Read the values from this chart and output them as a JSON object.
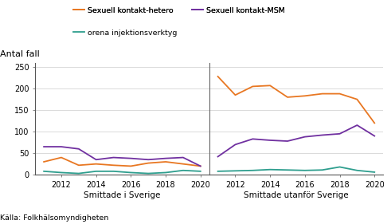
{
  "years": [
    2011,
    2012,
    2013,
    2014,
    2015,
    2016,
    2017,
    2018,
    2019,
    2020
  ],
  "sweden_hetero": [
    30,
    40,
    22,
    25,
    22,
    20,
    27,
    30,
    25,
    20
  ],
  "sweden_msm": [
    65,
    65,
    60,
    35,
    40,
    38,
    35,
    38,
    40,
    20
  ],
  "sweden_inject": [
    8,
    5,
    3,
    8,
    8,
    5,
    3,
    5,
    10,
    8
  ],
  "abroad_hetero": [
    228,
    185,
    205,
    207,
    180,
    183,
    188,
    188,
    175,
    120
  ],
  "abroad_msm": [
    42,
    70,
    83,
    80,
    78,
    88,
    92,
    95,
    115,
    90
  ],
  "abroad_inject": [
    8,
    9,
    10,
    12,
    11,
    10,
    11,
    18,
    10,
    6
  ],
  "color_hetero": "#E87722",
  "color_msm": "#7030A0",
  "color_inject": "#2E9E8E",
  "label_hetero": "Sexuell kontakt-hetero",
  "label_msm": "Sexuell kontakt-MSM",
  "label_inject": "orena injektionsverktyg",
  "title": "Antal fall",
  "xlabel_left": "Smittade i Sverige",
  "xlabel_right": "Smittade utanför Sverige",
  "source": "Källa: Folkhälsomyndigheten",
  "ylim": [
    0,
    260
  ],
  "yticks": [
    0,
    50,
    100,
    150,
    200,
    250
  ],
  "bg_color": "#FFFFFF",
  "grid_color": "#CCCCCC",
  "divider_color": "#666666"
}
